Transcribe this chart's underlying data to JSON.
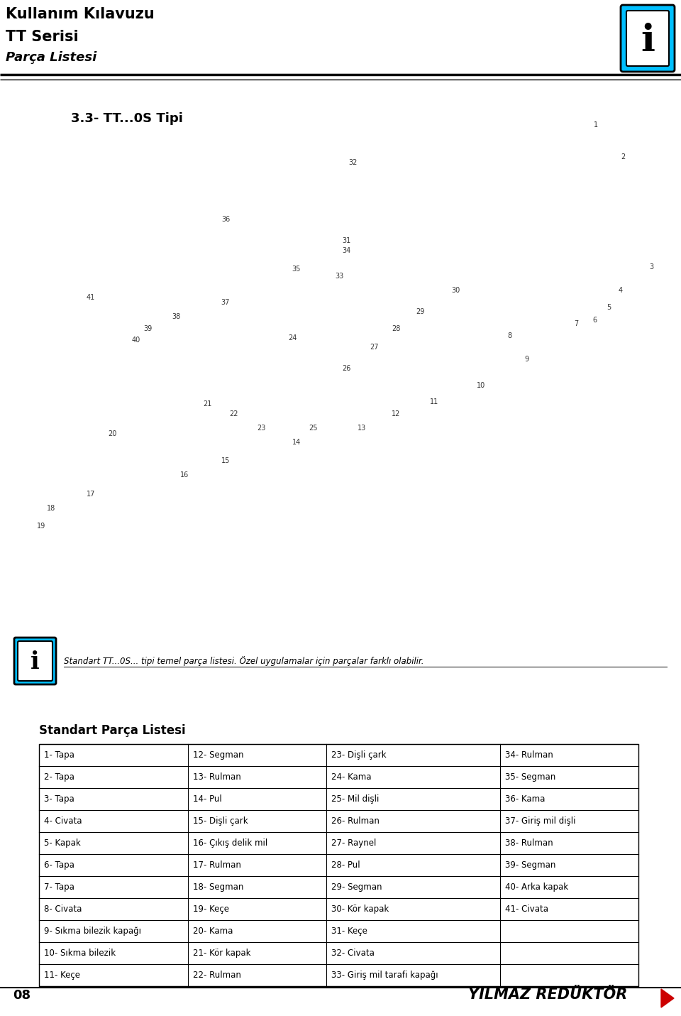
{
  "title_line1": "Kullanım Kılavuzu",
  "title_line2": "TT Serisi",
  "title_line3": "Parça Listesi",
  "section_title": "3.3- TT...0S Tipi",
  "info_text": "Standart TT...0S... tipi temel parça listesi. Özel uygulamalar için parçalar farklı olabilir.",
  "parts_table_title": "Standart Parça Listesi",
  "page_number": "08",
  "brand": "YILMAZ REDÜKTÖR",
  "background_color": "#ffffff",
  "header_line_color": "#000000",
  "table_border_color": "#000000",
  "parts": [
    [
      "1- Tapa",
      "12- Segman",
      "23- Dişli çark",
      "34- Rulman"
    ],
    [
      "2- Tapa",
      "13- Rulman",
      "24- Kama",
      "35- Segman"
    ],
    [
      "3- Tapa",
      "14- Pul",
      "25- Mil dişli",
      "36- Kama"
    ],
    [
      "4- Civata",
      "15- Dişli çark",
      "26- Rulman",
      "37- Giriş mil dişli"
    ],
    [
      "5- Kapak",
      "16- Çıkış delik mil",
      "27- Raynel",
      "38- Rulman"
    ],
    [
      "6- Tapa",
      "17- Rulman",
      "28- Pul",
      "39- Segman"
    ],
    [
      "7- Tapa",
      "18- Segman",
      "29- Segman",
      "40- Arka kapak"
    ],
    [
      "8- Civata",
      "19- Keçe",
      "30- Kör kapak",
      "41- Civata"
    ],
    [
      "9- Sıkma bilezik kapağı",
      "20- Kama",
      "31- Keçe",
      ""
    ],
    [
      "10- Sıkma bilezik",
      "21- Kör kapak",
      "32- Civata",
      ""
    ],
    [
      "11- Keçe",
      "22- Rulman",
      "33- Giriş mil tarafi kapağı",
      ""
    ]
  ]
}
